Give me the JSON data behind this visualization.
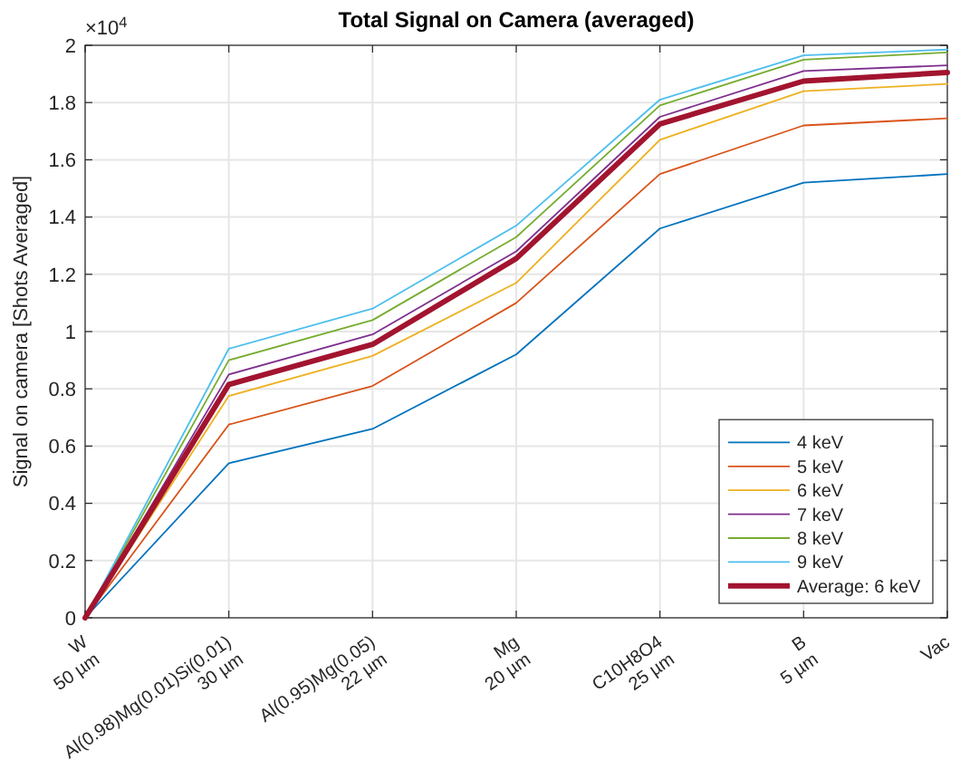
{
  "chart_data": {
    "type": "line",
    "title": "Total Signal on Camera (averaged)",
    "ylabel": "Signal on camera [Shots Averaged]",
    "categories": [
      "W\n50 µm",
      "Al(0.98)Mg(0.01)Si(0.01)\n30 µm",
      "Al(0.95)Mg(0.05)\n22 µm",
      "Mg\n20 µm",
      "C10H8O4\n25 µm",
      "B\n5 µm",
      "Vac"
    ],
    "series": [
      {
        "name": "4 keV",
        "color": "#0072bd",
        "values": [
          0,
          0.54,
          0.66,
          0.92,
          1.36,
          1.52,
          1.55
        ]
      },
      {
        "name": "5 keV",
        "color": "#d95319",
        "values": [
          0,
          0.675,
          0.81,
          1.1,
          1.55,
          1.72,
          1.745
        ]
      },
      {
        "name": "6 keV",
        "color": "#edb120",
        "values": [
          0,
          0.775,
          0.915,
          1.17,
          1.67,
          1.84,
          1.865
        ]
      },
      {
        "name": "7 keV",
        "color": "#7e2f8e",
        "values": [
          0,
          0.85,
          0.99,
          1.28,
          1.75,
          1.91,
          1.93
        ]
      },
      {
        "name": "8 keV",
        "color": "#77ac30",
        "values": [
          0,
          0.9,
          1.04,
          1.33,
          1.79,
          1.95,
          1.975
        ]
      },
      {
        "name": "9 keV",
        "color": "#4dbeee",
        "values": [
          0,
          0.94,
          1.08,
          1.37,
          1.81,
          1.965,
          1.985
        ]
      },
      {
        "name": "Average: 6 keV",
        "color": "#a2142f",
        "values": [
          0,
          0.815,
          0.955,
          1.255,
          1.725,
          1.875,
          1.905
        ]
      }
    ],
    "ylim": [
      0,
      2
    ],
    "yticks": [
      0,
      0.2,
      0.4,
      0.6,
      0.8,
      1,
      1.2,
      1.4,
      1.6,
      1.8,
      2
    ],
    "annotations": [
      "×10$^{4}$"
    ],
    "grid": true,
    "legend": "bottom right",
    "marker": "none",
    "line_style": "solid"
  }
}
